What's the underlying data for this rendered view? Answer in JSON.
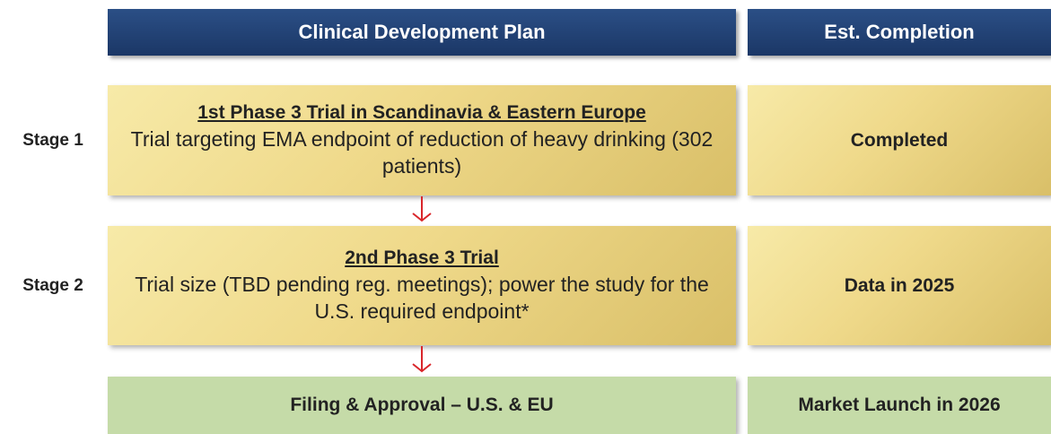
{
  "header": {
    "plan": "Clinical Development Plan",
    "completion": "Est. Completion"
  },
  "stages": [
    {
      "label": "Stage 1",
      "title": "1st Phase 3 Trial in Scandinavia & Eastern Europe",
      "description": "Trial targeting EMA endpoint of reduction of heavy drinking (302 patients)",
      "completion": "Completed"
    },
    {
      "label": "Stage 2",
      "title": "2nd Phase 3 Trial",
      "description": "Trial size (TBD pending reg. meetings); power the study for the U.S. required endpoint*",
      "completion": "Data in 2025"
    }
  ],
  "final": {
    "plan": "Filing & Approval – U.S. & EU",
    "completion": "Market Launch in 2026"
  }
}
